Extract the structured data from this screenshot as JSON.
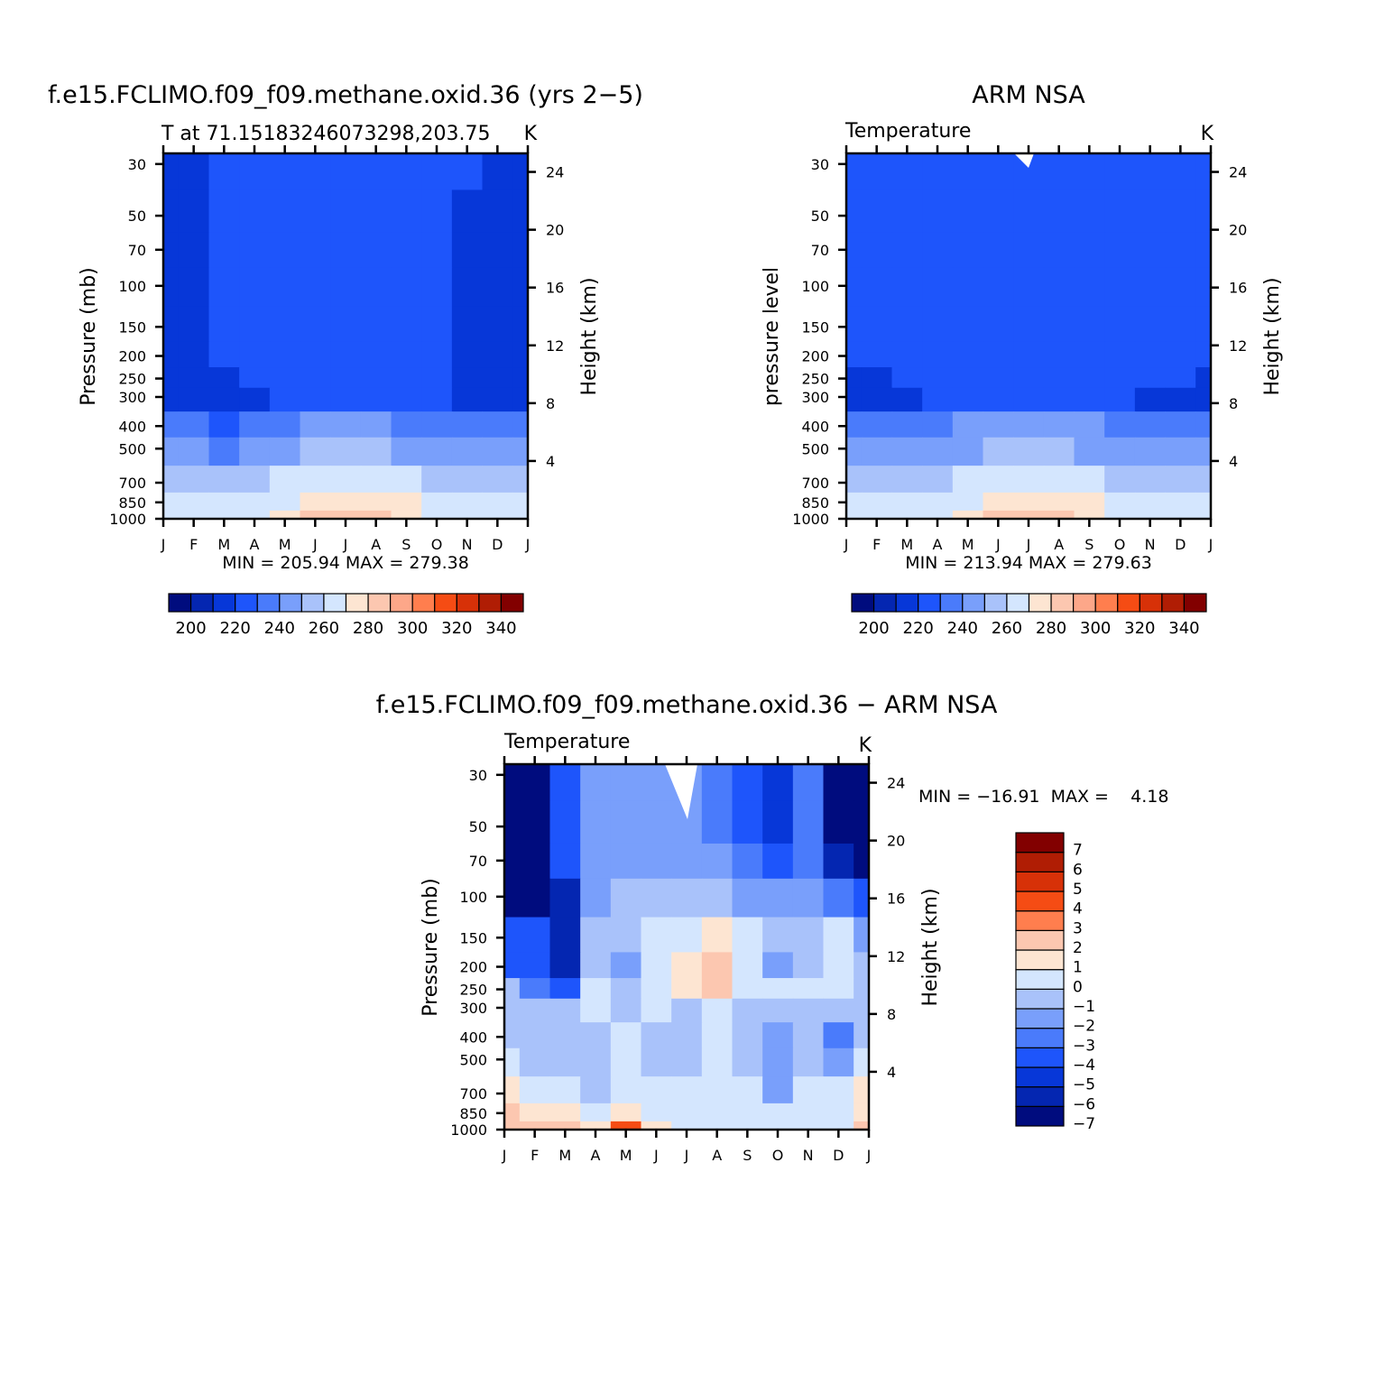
{
  "colors": {
    "temperature_scale": [
      "#000c7e",
      "#0426b1",
      "#0737d8",
      "#1e55fb",
      "#4a7bfb",
      "#799ffb",
      "#a9c2fa",
      "#d4e6fe",
      "#fde5d2",
      "#fcc7b0",
      "#fda789",
      "#ff7e4e",
      "#f54c14",
      "#d73108",
      "#b01d04",
      "#820000"
    ],
    "difference_scale": [
      "#000c7e",
      "#0426b1",
      "#0737d8",
      "#1e55fb",
      "#4a7bfb",
      "#799ffb",
      "#a9c2fa",
      "#d4e6fe",
      "#fde5d2",
      "#fcc7b0",
      "#ff7e4e",
      "#f54c14",
      "#d73108",
      "#b01d04",
      "#820000"
    ]
  },
  "chart_data": [
    {
      "type": "heatmap",
      "title": "f.e15.FCLIMO.f09_f09.methane.oxid.36 (yrs 2−5)",
      "subtitle": "T at 71.15183246073298,203.75",
      "units": "K",
      "ylabel": "Pressure (mb)",
      "ylabel_right": "Height (km)",
      "x_tick_labels": [
        "J",
        "F",
        "M",
        "A",
        "M",
        "J",
        "J",
        "A",
        "S",
        "O",
        "N",
        "D",
        "J"
      ],
      "y_tick_labels": [
        "30",
        "50",
        "70",
        "100",
        "150",
        "200",
        "250",
        "300",
        "400",
        "500",
        "700",
        "850",
        "1000"
      ],
      "y_right_tick_labels": [
        "24",
        "20",
        "16",
        "12",
        "8",
        "4"
      ],
      "summary": "MIN = 205.94  MAX = 279.38",
      "colorbar_labels": [
        "200",
        "220",
        "240",
        "260",
        "280",
        "300",
        "320",
        "340"
      ],
      "x": [
        "J",
        "F",
        "M",
        "A",
        "M",
        "J",
        "J",
        "A",
        "S",
        "O",
        "N",
        "D",
        "J"
      ],
      "y": [
        30,
        50,
        70,
        100,
        150,
        200,
        250,
        300,
        400,
        500,
        700,
        850,
        1000
      ],
      "z": [
        [
          205,
          213,
          215,
          218,
          218,
          218,
          218,
          218,
          218,
          215,
          215,
          205,
          205
        ],
        [
          206,
          213,
          215,
          218,
          218,
          218,
          218,
          218,
          218,
          215,
          213,
          207,
          206
        ],
        [
          208,
          213,
          215,
          218,
          218,
          218,
          218,
          218,
          218,
          216,
          213,
          210,
          209
        ],
        [
          212,
          213,
          215,
          218,
          218,
          218,
          218,
          218,
          218,
          217,
          213,
          212,
          212
        ],
        [
          213,
          213,
          215,
          217,
          218,
          218,
          218,
          218,
          218,
          218,
          214,
          213,
          213
        ],
        [
          213,
          213,
          215,
          216,
          218,
          218,
          218,
          218,
          218,
          217,
          214,
          213,
          213
        ],
        [
          213,
          213,
          214,
          217,
          218,
          218,
          218,
          218,
          218,
          215,
          213,
          213,
          213
        ],
        [
          213,
          213,
          213,
          214,
          219,
          219,
          219,
          219,
          218,
          215,
          213,
          213,
          213
        ],
        [
          228,
          226,
          224,
          230,
          234,
          237,
          238,
          237,
          234,
          229,
          227,
          226,
          228
        ],
        [
          236,
          236,
          234,
          240,
          244,
          247,
          248,
          247,
          244,
          239,
          237,
          236,
          236
        ],
        [
          249,
          249,
          247,
          253,
          258,
          261,
          262,
          261,
          258,
          254,
          252,
          250,
          249
        ],
        [
          255,
          255,
          255,
          258,
          264,
          270,
          272,
          271,
          266,
          259,
          256,
          256,
          255
        ],
        [
          258,
          258,
          258,
          261,
          267,
          276,
          279,
          277,
          270,
          262,
          259,
          258,
          258
        ]
      ]
    },
    {
      "type": "heatmap",
      "title": "ARM NSA",
      "subtitle": "Temperature",
      "units": "K",
      "ylabel": "pressure level",
      "ylabel_right": "Height (km)",
      "x_tick_labels": [
        "J",
        "F",
        "M",
        "A",
        "M",
        "J",
        "J",
        "A",
        "S",
        "O",
        "N",
        "D",
        "J"
      ],
      "y_tick_labels": [
        "30",
        "50",
        "70",
        "100",
        "150",
        "200",
        "250",
        "300",
        "400",
        "500",
        "700",
        "850",
        "1000"
      ],
      "y_right_tick_labels": [
        "24",
        "20",
        "16",
        "12",
        "8",
        "4"
      ],
      "summary": "MIN = 213.94  MAX = 279.63",
      "colorbar_labels": [
        "200",
        "220",
        "240",
        "260",
        "280",
        "300",
        "320",
        "340"
      ],
      "x": [
        "J",
        "F",
        "M",
        "A",
        "M",
        "J",
        "J",
        "A",
        "S",
        "O",
        "N",
        "D",
        "J"
      ],
      "y": [
        30,
        50,
        70,
        100,
        150,
        200,
        250,
        300,
        400,
        500,
        700,
        850,
        1000
      ],
      "z": [
        [
          219,
          219,
          219,
          219,
          219,
          219,
          219,
          219,
          219,
          219,
          216,
          216,
          219
        ],
        [
          219,
          219,
          219,
          219,
          219,
          219,
          219,
          219,
          219,
          219,
          216,
          216,
          217
        ],
        [
          219,
          219,
          219,
          219,
          219,
          219,
          219,
          219,
          219,
          219,
          216,
          216,
          216
        ],
        [
          219,
          219,
          219,
          219,
          219,
          219,
          219,
          219,
          219,
          219,
          216,
          216,
          216
        ],
        [
          219,
          219,
          219,
          219,
          219,
          219,
          219,
          219,
          219,
          219,
          216,
          216,
          216
        ],
        [
          215,
          216,
          218,
          219,
          219,
          219,
          219,
          219,
          219,
          219,
          216,
          216,
          216
        ],
        [
          214,
          214,
          215,
          219,
          219,
          219,
          219,
          219,
          219,
          216,
          215,
          215,
          214
        ],
        [
          214,
          214,
          214,
          219,
          219,
          219,
          219,
          219,
          219,
          216,
          214,
          214,
          214
        ],
        [
          228,
          227,
          226,
          231,
          235,
          238,
          239,
          238,
          235,
          230,
          228,
          227,
          228
        ],
        [
          236,
          236,
          235,
          240,
          244,
          247,
          248,
          247,
          244,
          240,
          237,
          236,
          236
        ],
        [
          249,
          249,
          248,
          253,
          258,
          261,
          262,
          261,
          258,
          254,
          252,
          250,
          249
        ],
        [
          255,
          255,
          255,
          258,
          264,
          270,
          272,
          271,
          266,
          259,
          256,
          256,
          255
        ],
        [
          258,
          258,
          258,
          261,
          267,
          276,
          279,
          277,
          270,
          262,
          259,
          258,
          258
        ]
      ]
    },
    {
      "type": "heatmap",
      "title": "f.e15.FCLIMO.f09_f09.methane.oxid.36 − ARM NSA",
      "subtitle": "Temperature",
      "units": "K",
      "ylabel": "Pressure (mb)",
      "ylabel_right": "Height (km)",
      "x_tick_labels": [
        "J",
        "F",
        "M",
        "A",
        "M",
        "J",
        "J",
        "A",
        "S",
        "O",
        "N",
        "D",
        "J"
      ],
      "y_tick_labels": [
        "30",
        "50",
        "70",
        "100",
        "150",
        "200",
        "250",
        "300",
        "400",
        "500",
        "700",
        "850",
        "1000"
      ],
      "y_right_tick_labels": [
        "24",
        "20",
        "16",
        "12",
        "8",
        "4"
      ],
      "summary": "MIN = −16.91  MAX =    4.18",
      "colorbar_labels": [
        "7",
        "6",
        "5",
        "4",
        "3",
        "2",
        "1",
        "0",
        "−1",
        "−2",
        "−3",
        "−4",
        "−5",
        "−6",
        "−7"
      ],
      "x": [
        "J",
        "F",
        "M",
        "A",
        "M",
        "J",
        "J",
        "A",
        "S",
        "O",
        "N",
        "D",
        "J"
      ],
      "y": [
        30,
        50,
        70,
        100,
        150,
        200,
        250,
        300,
        400,
        500,
        700,
        850,
        1000
      ],
      "z": [
        [
          -14,
          -8,
          -5,
          -2.5,
          -2.5,
          -2.5,
          -2.5,
          -3.5,
          -4.5,
          -6,
          -4,
          -12,
          -14
        ],
        [
          -14,
          -8,
          -5,
          -2.5,
          -2.5,
          -2.5,
          -2.5,
          -3.5,
          -4.5,
          -6,
          -4,
          -10,
          -12
        ],
        [
          -14,
          -8,
          -5,
          -2.5,
          -2.5,
          -2.5,
          -2.5,
          -2.5,
          -3.5,
          -5,
          -3.5,
          -7,
          -10
        ],
        [
          -8,
          -8,
          -7,
          -2.5,
          -1.5,
          -1.5,
          -1.5,
          -1.5,
          -2.5,
          -3,
          -2.5,
          -4,
          -5
        ],
        [
          -4.5,
          -4.5,
          -7,
          -1.5,
          -1.5,
          -0.5,
          -0.5,
          0.5,
          -0.5,
          -1.5,
          -1.5,
          -1,
          -3
        ],
        [
          -5,
          -4.5,
          -6.5,
          -1.5,
          -2.5,
          -0.5,
          0.5,
          1.5,
          -0.5,
          -2.5,
          -1.5,
          -1,
          -1.5
        ],
        [
          -1.5,
          -3.5,
          -4.5,
          -0.5,
          -1.5,
          -0.5,
          0.5,
          1.5,
          -0.5,
          -0.5,
          -0.5,
          -1,
          -1.5
        ],
        [
          -1.5,
          -1.5,
          -2,
          -1,
          -1.5,
          -0.5,
          -1.5,
          -0.5,
          -1.5,
          -1.5,
          -1.5,
          -1.5,
          -1.5
        ],
        [
          -1.5,
          -1.5,
          -1.5,
          -1.5,
          -0.5,
          -1.5,
          -1.5,
          -0.5,
          -1.5,
          -2.5,
          -1.5,
          -3.5,
          -1.5
        ],
        [
          -0.5,
          -1.5,
          -1.5,
          -1.5,
          -0.5,
          -1.5,
          -1.5,
          -0.5,
          -1.5,
          -2.5,
          -1.5,
          -3,
          -1
        ],
        [
          0.5,
          -0.5,
          -0.5,
          -1.5,
          -0.5,
          -0.5,
          -0.5,
          -0.5,
          -0.5,
          -2.5,
          -0.5,
          -1,
          0.5
        ],
        [
          1.5,
          0.5,
          0.5,
          -0.5,
          0.5,
          -0.5,
          -0.5,
          -0.5,
          -0.5,
          -1,
          -0.5,
          -0.5,
          0.5
        ],
        [
          1.5,
          1.5,
          1.5,
          0.5,
          3.5,
          0.5,
          -0.5,
          -0.5,
          -0.5,
          -0.5,
          -0.5,
          -0.5,
          1.5
        ]
      ]
    }
  ]
}
